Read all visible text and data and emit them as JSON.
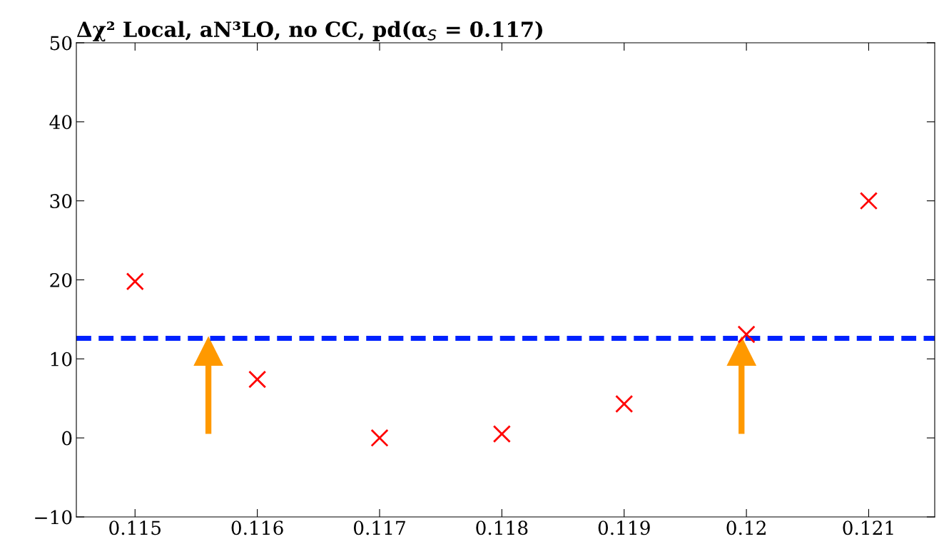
{
  "chart_data": {
    "type": "scatter",
    "title": "Δχ² Local, aN³LO, no CC, pd(α$_{S}$ = 0.117)",
    "x": [
      0.115,
      0.116,
      0.117,
      0.118,
      0.119,
      0.12,
      0.121
    ],
    "series": [
      {
        "color": "#ff0000",
        "values": [
          19.8,
          7.4,
          0.0,
          0.5,
          4.3,
          13.1,
          30.0
        ]
      },
      {
        "type": "scatter",
        "marker": "triangle",
        "color": "#ff9900",
        "x": [
          0.1156,
          0.11996
        ],
        "values": [
          11.0,
          11.0
        ],
        "errors": [
          [
            0.5,
            11.0
          ],
          [
            0.5,
            11.0
          ]
        ]
      }
    ],
    "marker": "cross",
    "xlim": [
      0.11452,
      0.12154
    ],
    "xticks": [
      0.115,
      0.116,
      0.117,
      0.118,
      0.119,
      0.12,
      0.121
    ],
    "ylim": [
      -10,
      50
    ],
    "yticks": [
      {
        "value": -10,
        "label": "−10"
      },
      0,
      10,
      20,
      30,
      40,
      50
    ],
    "ref_lines": [
      {
        "axis": "y",
        "value": 12.6,
        "color": "#0022ff",
        "line_style": "dashed"
      }
    ],
    "grid": false,
    "legend": false
  }
}
